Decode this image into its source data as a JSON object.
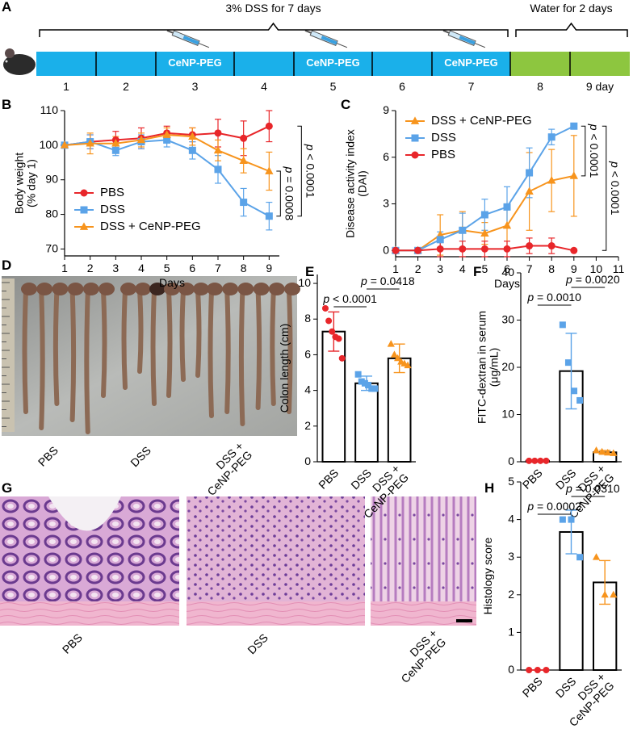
{
  "timeline": {
    "label": "A",
    "dss_label": "3% DSS for 7 days",
    "water_label": "Water for 2 days",
    "segments": [
      {
        "day": "1",
        "phase": "dss"
      },
      {
        "day": "2",
        "phase": "dss"
      },
      {
        "day": "3",
        "phase": "dss",
        "treatment": "CeNP-PEG"
      },
      {
        "day": "4",
        "phase": "dss"
      },
      {
        "day": "5",
        "phase": "dss",
        "treatment": "CeNP-PEG"
      },
      {
        "day": "6",
        "phase": "dss"
      },
      {
        "day": "7",
        "phase": "dss",
        "treatment": "CeNP-PEG"
      },
      {
        "day": "8",
        "phase": "water"
      },
      {
        "day": "9 day",
        "phase": "water"
      }
    ],
    "colors": {
      "dss": "#1ab0ea",
      "water": "#8dc63f"
    }
  },
  "colon_photo": {
    "label": "D",
    "groups": [
      "PBS",
      "DSS",
      "DSS +\nCeNP-PEG"
    ]
  },
  "histology_images": {
    "label": "G",
    "groups": [
      "PBS",
      "DSS",
      "DSS +\nCeNP-PEG"
    ]
  },
  "chart_data": [
    {
      "label": "B",
      "type": "line",
      "xlabel": "Days",
      "ylabel": "Body weight\n(% day 1)",
      "x": [
        1,
        2,
        3,
        4,
        5,
        6,
        7,
        8,
        9
      ],
      "xlim": [
        1,
        9.4
      ],
      "xticks": [
        1,
        2,
        3,
        4,
        5,
        6,
        7,
        8,
        9
      ],
      "ylim": [
        68,
        110
      ],
      "yticks": [
        70,
        80,
        90,
        100,
        110
      ],
      "legend": "lower left",
      "series": [
        {
          "name": "PBS",
          "color": "#e8262a",
          "marker": "circle",
          "values": [
            100,
            101,
            101.5,
            102,
            103.5,
            103,
            103.5,
            102,
            105.5
          ],
          "errors": [
            0,
            2,
            2.5,
            3,
            2,
            2,
            4,
            5,
            4.5
          ]
        },
        {
          "name": "DSS",
          "color": "#5ba3e8",
          "marker": "square",
          "values": [
            100,
            101,
            98.5,
            101,
            101.5,
            98.5,
            93,
            83.5,
            79.5
          ],
          "errors": [
            0,
            2,
            1.5,
            2,
            2,
            2.5,
            4,
            4,
            4
          ]
        },
        {
          "name": "DSS + CeNP-PEG",
          "color": "#f7941d",
          "marker": "triangle",
          "values": [
            100,
            100.5,
            100.5,
            101.5,
            103,
            102.5,
            98.5,
            95.5,
            92.5
          ],
          "errors": [
            0,
            3,
            2,
            2,
            2,
            2.5,
            3,
            3.5,
            5.5
          ]
        }
      ],
      "comparisons": [
        {
          "label": "p = 0.0008",
          "between": [
            "DSS + CeNP-PEG",
            "DSS"
          ]
        },
        {
          "label": "p < 0.0001",
          "between": [
            "PBS",
            "DSS"
          ]
        }
      ]
    },
    {
      "label": "C",
      "type": "line",
      "xlabel": "Days",
      "ylabel": "Disease activity index\n(DAI)",
      "x": [
        1,
        2,
        3,
        4,
        5,
        6,
        7,
        8,
        9
      ],
      "xlim": [
        1,
        11
      ],
      "xticks": [
        1,
        2,
        3,
        4,
        5,
        6,
        7,
        8,
        9,
        10,
        11
      ],
      "ylim": [
        -0.4,
        9
      ],
      "yticks": [
        0,
        3,
        6,
        9
      ],
      "legend": "upper left",
      "series": [
        {
          "name": "DSS + CeNP-PEG",
          "color": "#f7941d",
          "marker": "triangle",
          "values": [
            0,
            0,
            1,
            1.3,
            1.1,
            1.6,
            3.8,
            4.5,
            4.8
          ],
          "errors": [
            0,
            0,
            1.3,
            1.2,
            0.7,
            1.4,
            2.5,
            2,
            2.6
          ]
        },
        {
          "name": "DSS",
          "color": "#5ba3e8",
          "marker": "square",
          "values": [
            0,
            0,
            0.7,
            1.3,
            2.3,
            2.8,
            5,
            7.3,
            8
          ],
          "errors": [
            0,
            0,
            0.5,
            1.1,
            1,
            1.3,
            1.6,
            0.5,
            0.1
          ]
        },
        {
          "name": "PBS",
          "color": "#e8262a",
          "marker": "circle",
          "values": [
            0,
            0,
            0.1,
            0.1,
            0.1,
            0.1,
            0.3,
            0.3,
            0
          ],
          "errors": [
            0,
            0,
            0.5,
            0.5,
            0.5,
            0.5,
            0.5,
            0.5,
            0
          ]
        }
      ],
      "comparisons": [
        {
          "label": "p < 0.0001",
          "between": [
            "DSS",
            "DSS + CeNP-PEG"
          ]
        },
        {
          "label": "p < 0.0001",
          "between": [
            "DSS",
            "PBS"
          ]
        }
      ]
    },
    {
      "label": "E",
      "type": "bar",
      "ylabel": "Colon length (cm)",
      "categories": [
        "PBS",
        "DSS",
        "DSS +\nCeNP-PEG"
      ],
      "values": [
        7.3,
        4.4,
        5.8
      ],
      "errors": [
        1.1,
        0.4,
        0.8
      ],
      "points": [
        [
          8.6,
          7.9,
          7.3,
          7.0,
          6.9,
          5.8
        ],
        [
          4.9,
          4.5,
          4.4,
          4.3,
          4.1,
          4.1
        ],
        [
          6.6,
          6.0,
          5.8,
          5.6,
          5.5,
          5.4
        ]
      ],
      "colors": [
        "#e8262a",
        "#5ba3e8",
        "#f7941d"
      ],
      "markers": [
        "circle",
        "square",
        "triangle"
      ],
      "ylim": [
        0,
        10.5
      ],
      "yticks": [
        0,
        2,
        4,
        6,
        8,
        10
      ],
      "comparisons": [
        {
          "label": "p < 0.0001",
          "between": [
            "PBS",
            "DSS"
          ]
        },
        {
          "label": "p = 0.0418",
          "between": [
            "DSS",
            "DSS +\nCeNP-PEG"
          ]
        }
      ]
    },
    {
      "label": "F",
      "type": "bar",
      "ylabel": "FITC-dextran in serum\n(μg/mL)",
      "categories": [
        "PBS",
        "DSS",
        "DSS +\nCeNP-PEG"
      ],
      "values": [
        0.2,
        19.2,
        2.0
      ],
      "errors": [
        0.1,
        8,
        0.4
      ],
      "points": [
        [
          0.2,
          0.2,
          0.2,
          0.2
        ],
        [
          29,
          21,
          15,
          13
        ],
        [
          2.4,
          2.1,
          1.9,
          1.8
        ]
      ],
      "colors": [
        "#e8262a",
        "#5ba3e8",
        "#f7941d"
      ],
      "markers": [
        "circle",
        "square",
        "triangle"
      ],
      "ylim": [
        0,
        40
      ],
      "yticks": [
        0,
        10,
        20,
        30,
        40
      ],
      "comparisons": [
        {
          "label": "p = 0.0010",
          "between": [
            "PBS",
            "DSS"
          ]
        },
        {
          "label": "p = 0.0020",
          "between": [
            "DSS",
            "DSS +\nCeNP-PEG"
          ]
        }
      ]
    },
    {
      "label": "H",
      "type": "bar",
      "ylabel": "Histology score",
      "categories": [
        "PBS",
        "DSS",
        "DSS +\nCeNP-PEG"
      ],
      "values": [
        0,
        3.67,
        2.33
      ],
      "errors": [
        0,
        0.58,
        0.58
      ],
      "points": [
        [
          0,
          0,
          0
        ],
        [
          4,
          4,
          3
        ],
        [
          3,
          2,
          2
        ]
      ],
      "colors": [
        "#e8262a",
        "#5ba3e8",
        "#f7941d"
      ],
      "markers": [
        "circle",
        "square",
        "triangle"
      ],
      "ylim": [
        0,
        5
      ],
      "yticks": [
        0,
        1,
        2,
        3,
        4,
        5
      ],
      "comparisons": [
        {
          "label": "p = 0.0002",
          "between": [
            "PBS",
            "DSS"
          ]
        },
        {
          "label": "p = 0.0310",
          "between": [
            "DSS",
            "DSS +\nCeNP-PEG"
          ]
        }
      ]
    }
  ]
}
